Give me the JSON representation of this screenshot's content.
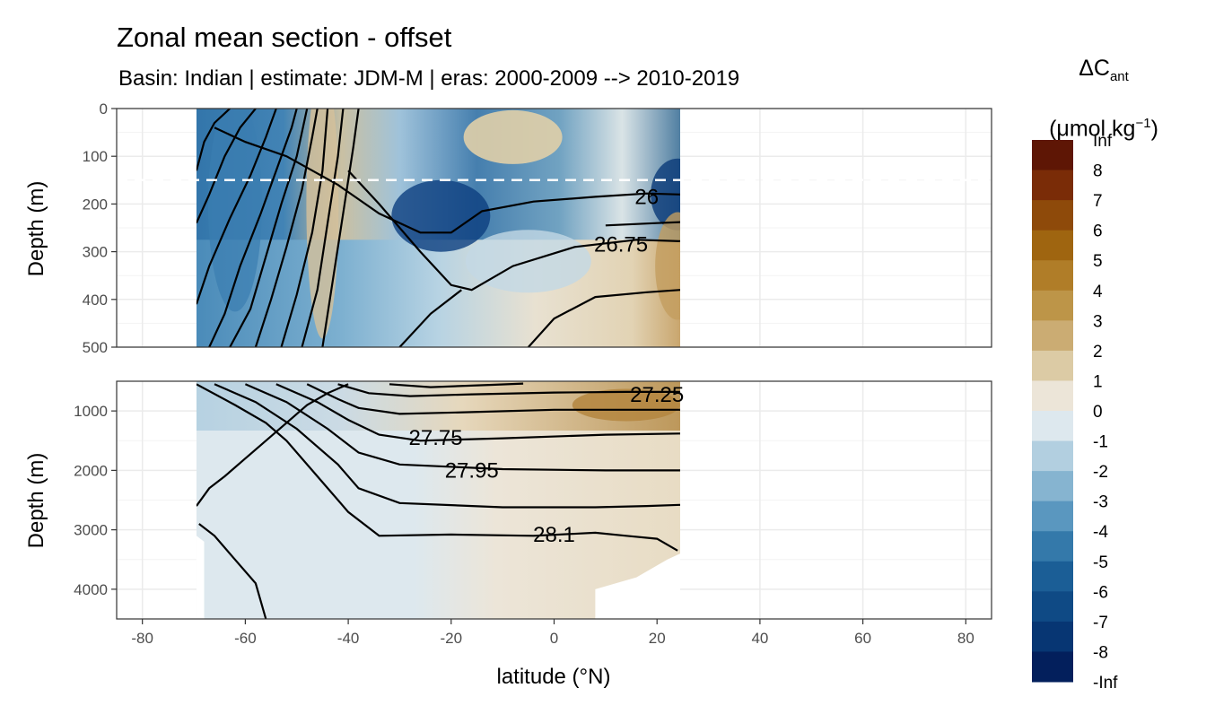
{
  "chart_data": {
    "type": "heatmap",
    "title": "Zonal mean section - offset",
    "subtitle": "Basin: Indian | estimate: JDM-M | eras: 2000-2009 --> 2010-2019",
    "xlabel": "latitude (°N)",
    "ylabel": "Depth (m)",
    "xlim": [
      -85,
      85
    ],
    "x_ticks": [
      "-80",
      "-60",
      "-40",
      "-20",
      "0",
      "20",
      "40",
      "60",
      "80"
    ],
    "x_tick_values": [
      -80,
      -60,
      -40,
      -20,
      0,
      20,
      40,
      60,
      80
    ],
    "panels": [
      {
        "name": "upper",
        "ylim": [
          0,
          500
        ],
        "y_ticks": [
          "0",
          "100",
          "200",
          "300",
          "400",
          "500"
        ],
        "y_tick_values": [
          0,
          100,
          200,
          300,
          400,
          500
        ],
        "reference_line_depth": 150
      },
      {
        "name": "lower",
        "ylim": [
          500,
          4500
        ],
        "y_ticks": [
          "1000",
          "2000",
          "3000",
          "4000"
        ],
        "y_tick_values": [
          1000,
          2000,
          3000,
          4000
        ]
      }
    ],
    "data_extent_latitude": [
      -69.5,
      24.5
    ],
    "contour_labels": [
      {
        "text": "26",
        "lat": 18,
        "depth": 185,
        "panel": "upper"
      },
      {
        "text": "26.75",
        "lat": 13,
        "depth": 285,
        "panel": "upper"
      },
      {
        "text": "27.25",
        "lat": 20,
        "depth": 730,
        "panel": "lower"
      },
      {
        "text": "27.75",
        "lat": -23,
        "depth": 1450,
        "panel": "lower"
      },
      {
        "text": "27.95",
        "lat": -16,
        "depth": 2000,
        "panel": "lower"
      },
      {
        "text": "28.1",
        "lat": 0,
        "depth": 3080,
        "panel": "lower"
      }
    ],
    "legend": {
      "title_main": "ΔC",
      "title_sub": "ant",
      "title_unit": "(μmol kg",
      "title_sup": "−1",
      "title_close": ")",
      "labels": [
        "Inf",
        "8",
        "7",
        "6",
        "5",
        "4",
        "3",
        "2",
        "1",
        "0",
        "-1",
        "-2",
        "-3",
        "-4",
        "-5",
        "-6",
        "-7",
        "-8",
        "-Inf"
      ],
      "colors": [
        "#5e1605",
        "#7a2c07",
        "#8e4a0a",
        "#9f6510",
        "#b07d28",
        "#bd9548",
        "#cbac73",
        "#dccba5",
        "#ece5d8",
        "#dde8ee",
        "#b2cfe0",
        "#86b4d0",
        "#5a97bf",
        "#3479aa",
        "#1b5e96",
        "#0f4a85",
        "#073673",
        "#031f5c"
      ]
    }
  }
}
